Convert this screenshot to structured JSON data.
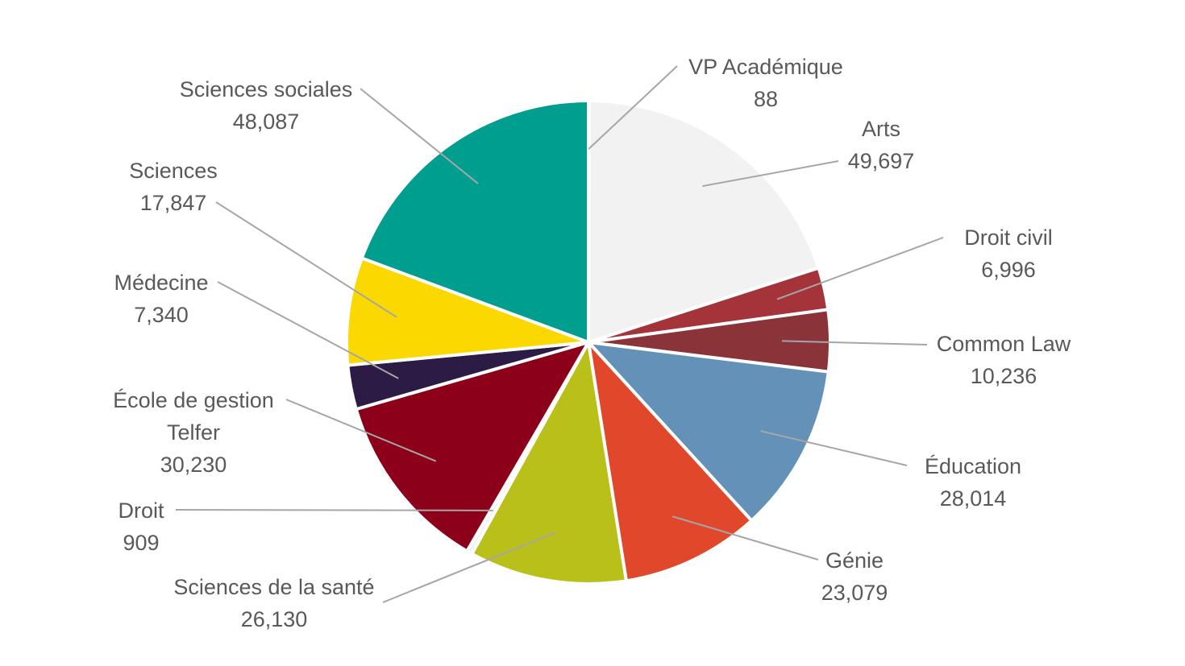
{
  "chart_data": {
    "type": "pie",
    "title": "",
    "slices": [
      {
        "label": [
          "VP Académique"
        ],
        "value": 88,
        "value_label": "88",
        "color": "#f2f2f2"
      },
      {
        "label": [
          "Arts"
        ],
        "value": 49697,
        "value_label": "49,697",
        "color": "#f2f2f2"
      },
      {
        "label": [
          "Droit civil"
        ],
        "value": 6996,
        "value_label": "6,996",
        "color": "#a4343a"
      },
      {
        "label": [
          "Common Law"
        ],
        "value": 10236,
        "value_label": "10,236",
        "color": "#8a3338"
      },
      {
        "label": [
          "Éducation"
        ],
        "value": 28014,
        "value_label": "28,014",
        "color": "#6391b8"
      },
      {
        "label": [
          "Génie"
        ],
        "value": 23079,
        "value_label": "23,079",
        "color": "#e0472b"
      },
      {
        "label": [
          "Sciences de la santé"
        ],
        "value": 26130,
        "value_label": "26,130",
        "color": "#b8c019"
      },
      {
        "label": [
          "Droit"
        ],
        "value": 909,
        "value_label": "909",
        "color": "#f2f2f2"
      },
      {
        "label": [
          "École de gestion",
          "Telfer"
        ],
        "value": 30230,
        "value_label": "30,230",
        "color": "#8c001a"
      },
      {
        "label": [
          "Médecine"
        ],
        "value": 7340,
        "value_label": "7,340",
        "color": "#2b1b45"
      },
      {
        "label": [
          "Sciences"
        ],
        "value": 17847,
        "value_label": "17,847",
        "color": "#fad800"
      },
      {
        "label": [
          "Sciences sociales"
        ],
        "value": 48087,
        "value_label": "48,087",
        "color": "#009e8f"
      }
    ]
  }
}
